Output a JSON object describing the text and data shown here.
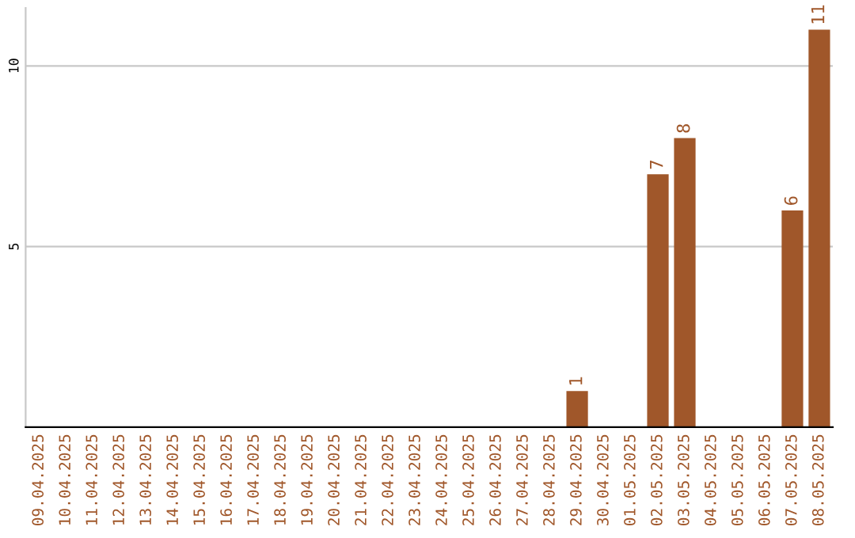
{
  "chart_data": {
    "type": "bar",
    "categories": [
      "09.04.2025",
      "10.04.2025",
      "11.04.2025",
      "12.04.2025",
      "13.04.2025",
      "14.04.2025",
      "15.04.2025",
      "16.04.2025",
      "17.04.2025",
      "18.04.2025",
      "19.04.2025",
      "20.04.2025",
      "21.04.2025",
      "22.04.2025",
      "23.04.2025",
      "24.04.2025",
      "25.04.2025",
      "26.04.2025",
      "27.04.2025",
      "28.04.2025",
      "29.04.2025",
      "30.04.2025",
      "01.05.2025",
      "02.05.2025",
      "03.05.2025",
      "04.05.2025",
      "05.05.2025",
      "06.05.2025",
      "07.05.2025",
      "08.05.2025"
    ],
    "values": [
      0,
      0,
      0,
      0,
      0,
      0,
      0,
      0,
      0,
      0,
      0,
      0,
      0,
      0,
      0,
      0,
      0,
      0,
      0,
      0,
      1,
      0,
      0,
      7,
      8,
      0,
      0,
      0,
      6,
      11
    ],
    "value_labels": [
      null,
      null,
      null,
      null,
      null,
      null,
      null,
      null,
      null,
      null,
      null,
      null,
      null,
      null,
      null,
      null,
      null,
      null,
      null,
      null,
      "1",
      null,
      null,
      "7",
      "8",
      null,
      null,
      null,
      "6",
      "11"
    ],
    "color": "#a0572a",
    "ylim": [
      0,
      11.6
    ],
    "yticks": [
      5,
      10
    ],
    "grid": "y"
  }
}
